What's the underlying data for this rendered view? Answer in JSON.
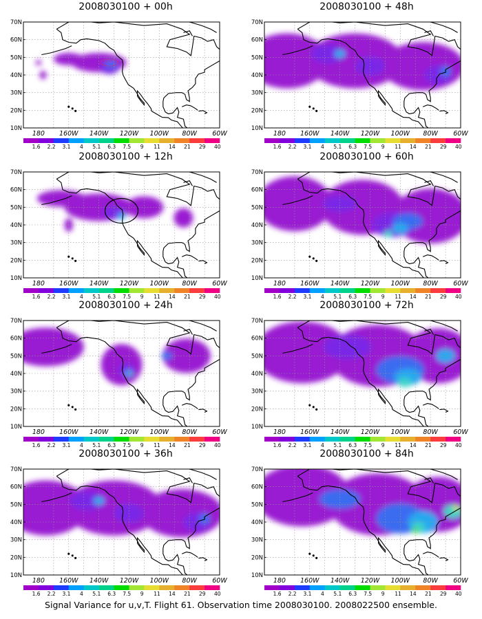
{
  "caption": "Signal Variance for u,v,T. Flight 61. Observation time 2008030100. 2008022500 ensemble.",
  "axes": {
    "lat_labels": [
      "70N",
      "60N",
      "50N",
      "40N",
      "30N",
      "20N",
      "10N"
    ],
    "lon_labels": [
      "180",
      "160W",
      "140W",
      "120W",
      "100W",
      "80W",
      "60W"
    ],
    "lat_range": [
      10,
      70
    ],
    "lon_range": [
      -190,
      -60
    ]
  },
  "colorbar": {
    "labels": [
      "1.6",
      "2.2",
      "3.1",
      "4",
      "5.1",
      "6.3",
      "7.5",
      "9",
      "11",
      "14",
      "21",
      "29",
      "40"
    ],
    "colors": [
      "#a000c8",
      "#8200dc",
      "#1e3cff",
      "#00a0ff",
      "#00c8c8",
      "#00d28c",
      "#00dc00",
      "#a0e632",
      "#e6dc32",
      "#e6af2d",
      "#f08228",
      "#fa3c3c",
      "#f00082"
    ]
  },
  "panels": [
    {
      "title": "2008030100 + 00h",
      "level": 1
    },
    {
      "title": "2008030100 + 48h",
      "level": 3
    },
    {
      "title": "2008030100 + 12h",
      "level": 2
    },
    {
      "title": "2008030100 + 60h",
      "level": 4
    },
    {
      "title": "2008030100 + 24h",
      "level": 3
    },
    {
      "title": "2008030100 + 72h",
      "level": 5
    },
    {
      "title": "2008030100 + 36h",
      "level": 3
    },
    {
      "title": "2008030100 + 84h",
      "level": 6
    }
  ]
}
